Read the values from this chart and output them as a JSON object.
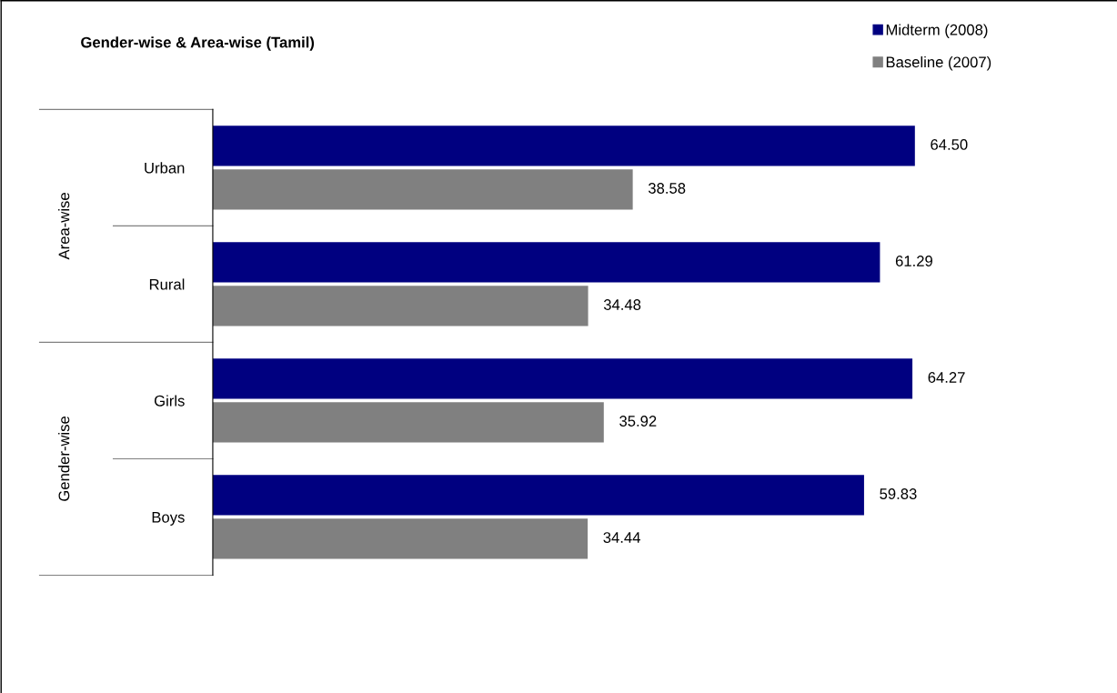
{
  "chart_data": {
    "type": "bar",
    "orientation": "horizontal",
    "title": "Gender-wise & Area-wise (Tamil)",
    "categories": [
      "Urban",
      "Rural",
      "Girls",
      "Boys"
    ],
    "series": [
      {
        "name": "Midterm (2008)",
        "color": "#000080",
        "values": [
          64.5,
          61.29,
          64.27,
          59.83
        ],
        "value_labels": [
          "64.50",
          "61.29",
          "64.27",
          "59.83"
        ]
      },
      {
        "name": "Baseline (2007)",
        "color": "#808080",
        "values": [
          38.58,
          34.48,
          35.92,
          34.44
        ],
        "value_labels": [
          "38.58",
          "34.48",
          "35.92",
          "34.44"
        ]
      }
    ],
    "legend": "top right",
    "grid": false,
    "tick_labels": "y",
    "annotations": [
      "Area-wise",
      "Gender-wise"
    ]
  }
}
